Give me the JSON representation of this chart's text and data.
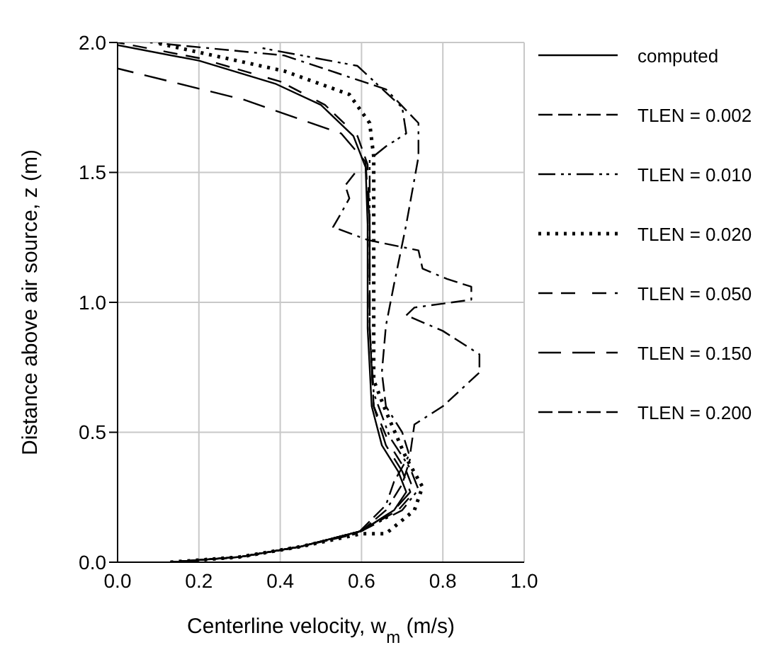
{
  "chart_data": {
    "type": "line",
    "xlabel": "Centerline velocity, w$_{m}$ (m/s)",
    "ylabel": "Distance above air source, z (m)",
    "xlim": [
      0,
      1
    ],
    "xticks": [
      {
        "value": 0,
        "label": "0.0"
      },
      0.2,
      0.4,
      0.6,
      0.8,
      {
        "value": 1,
        "label": "1.0"
      }
    ],
    "ylim": [
      0,
      2
    ],
    "yticks": [
      {
        "value": 0,
        "label": "0.0"
      },
      0.5,
      {
        "value": 1,
        "label": "1.0"
      },
      1.5,
      {
        "value": 2,
        "label": "2.0"
      }
    ],
    "grid": true,
    "legend": "right",
    "marker": "none",
    "series": [
      {
        "name": "computed",
        "color": "#000000",
        "line_style": "solid",
        "x": [
          0.13,
          0.3,
          0.45,
          0.6,
          0.68,
          0.71,
          0.69,
          0.65,
          0.625,
          0.615,
          0.615,
          0.61,
          0.58,
          0.5,
          0.39,
          0.2,
          0
        ],
        "values": [
          0,
          0.02,
          0.06,
          0.12,
          0.2,
          0.27,
          0.35,
          0.45,
          0.6,
          0.9,
          1.3,
          1.52,
          1.64,
          1.76,
          1.84,
          1.93,
          1.99
        ]
      },
      {
        "name": "TLEN = 0.002",
        "color": "#000000",
        "line_style": "dashed",
        "x": [
          0.13,
          0.3,
          0.45,
          0.6,
          0.66,
          0.7,
          0.72,
          0.7,
          0.66,
          0.65,
          0.66,
          0.68,
          0.71,
          0.74,
          0.74,
          0.66,
          0.41,
          0.08
        ],
        "values": [
          0,
          0.02,
          0.06,
          0.12,
          0.2,
          0.3,
          0.4,
          0.5,
          0.6,
          0.73,
          0.91,
          1.07,
          1.3,
          1.56,
          1.69,
          1.82,
          1.95,
          2
        ]
      },
      {
        "name": "TLEN = 0.010",
        "color": "#000000",
        "line_style": "dashed",
        "x": [
          0.13,
          0.3,
          0.45,
          0.6,
          0.7,
          0.74,
          0.72,
          0.67,
          0.63,
          0.62,
          0.62,
          0.62,
          0.66,
          0.71,
          0.7,
          0.59,
          0.35
        ],
        "values": [
          0,
          0.02,
          0.06,
          0.12,
          0.2,
          0.28,
          0.36,
          0.48,
          0.65,
          0.9,
          1.3,
          1.55,
          1.6,
          1.65,
          1.75,
          1.91,
          1.98
        ]
      },
      {
        "name": "TLEN = 0.020",
        "color": "#000000",
        "line_style": "dotted",
        "x": [
          0.13,
          0.3,
          0.45,
          0.6,
          0.66,
          0.73,
          0.75,
          0.71,
          0.66,
          0.63,
          0.63,
          0.63,
          0.62,
          0.57,
          0.41,
          0.09
        ],
        "values": [
          0,
          0.02,
          0.06,
          0.11,
          0.11,
          0.2,
          0.29,
          0.4,
          0.58,
          0.7,
          1.2,
          1.56,
          1.69,
          1.8,
          1.89,
          2
        ]
      },
      {
        "name": "TLEN = 0.050",
        "color": "#000000",
        "line_style": "dashed",
        "x": [
          0.13,
          0.3,
          0.45,
          0.6,
          0.69,
          0.73,
          0.71,
          0.67,
          0.63,
          0.62,
          0.62,
          0.615,
          0.59,
          0.51,
          0.4,
          0.2,
          0
        ],
        "values": [
          0,
          0.02,
          0.06,
          0.12,
          0.2,
          0.27,
          0.35,
          0.45,
          0.6,
          0.9,
          1.3,
          1.53,
          1.64,
          1.76,
          1.85,
          1.94,
          2
        ]
      },
      {
        "name": "TLEN = 0.150",
        "color": "#000000",
        "line_style": "dashed",
        "x": [
          0.13,
          0.3,
          0.45,
          0.6,
          0.68,
          0.72,
          0.7,
          0.66,
          0.63,
          0.62,
          0.62,
          0.61,
          0.55,
          0.31,
          0
        ],
        "values": [
          0,
          0.02,
          0.06,
          0.12,
          0.2,
          0.27,
          0.35,
          0.45,
          0.6,
          0.9,
          1.3,
          1.54,
          1.65,
          1.78,
          1.9
        ]
      },
      {
        "name": "TLEN = 0.200",
        "color": "#000000",
        "line_style": "dashed",
        "x": [
          0.13,
          0.3,
          0.45,
          0.59,
          0.66,
          0.68,
          0.72,
          0.73,
          0.8,
          0.89,
          0.89,
          0.8,
          0.71,
          0.73,
          0.87,
          0.87,
          0.81,
          0.75,
          0.74,
          0.615,
          0.53,
          0.545,
          0.57,
          0.56,
          0.59
        ],
        "values": [
          0,
          0.02,
          0.06,
          0.11,
          0.22,
          0.31,
          0.42,
          0.53,
          0.6,
          0.73,
          0.8,
          0.89,
          0.95,
          0.98,
          1.01,
          1.06,
          1.09,
          1.13,
          1.2,
          1.24,
          1.29,
          1.33,
          1.4,
          1.45,
          1.51
        ]
      }
    ]
  }
}
